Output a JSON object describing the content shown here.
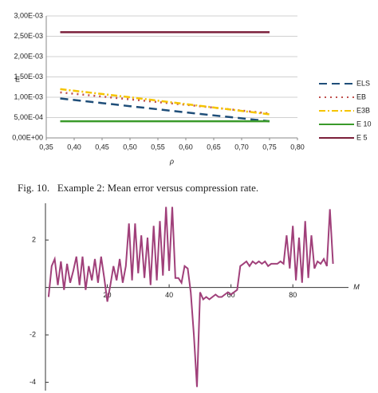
{
  "chart_data": [
    {
      "type": "line",
      "xlabel": "ρ",
      "ylabel": "E",
      "x": [
        0.375,
        0.5,
        0.625,
        0.75
      ],
      "xlim": [
        0.35,
        0.8
      ],
      "ylim": [
        0,
        0.003
      ],
      "xticks": [
        {
          "value": 0.35,
          "label": "0,35"
        },
        {
          "value": 0.4,
          "label": "0,40"
        },
        {
          "value": 0.45,
          "label": "0,45"
        },
        {
          "value": 0.5,
          "label": "0,50"
        },
        {
          "value": 0.55,
          "label": "0,55"
        },
        {
          "value": 0.6,
          "label": "0,60"
        },
        {
          "value": 0.65,
          "label": "0,65"
        },
        {
          "value": 0.7,
          "label": "0,70"
        },
        {
          "value": 0.75,
          "label": "0,75"
        },
        {
          "value": 0.8,
          "label": "0,80"
        }
      ],
      "yticks": [
        {
          "value": 0,
          "label": "0,00E+00"
        },
        {
          "value": 0.0005,
          "label": "5,00E-04"
        },
        {
          "value": 0.001,
          "label": "1,00E-03"
        },
        {
          "value": 0.0015,
          "label": "1,50E-03"
        },
        {
          "value": 0.002,
          "label": "2,00E-03"
        },
        {
          "value": 0.0025,
          "label": "2,50E-03"
        },
        {
          "value": 0.003,
          "label": "3,00E-03"
        }
      ],
      "grid": true,
      "legend": "right",
      "series": [
        {
          "name": "ELS",
          "color": "#1f4e79",
          "dash": "10,6",
          "values": [
            0.00097,
            0.00078,
            0.00059,
            0.00041
          ]
        },
        {
          "name": "EB",
          "color": "#c0504d",
          "dash": "2,5",
          "values": [
            0.00112,
            0.00095,
            0.00078,
            0.0006
          ]
        },
        {
          "name": "E3B",
          "color": "#f5c400",
          "dash": "8,3,2,3",
          "values": [
            0.0012,
            0.001,
            0.00079,
            0.00058
          ]
        },
        {
          "name": "E 10",
          "color": "#3a9a2a",
          "dash": "",
          "values": [
            0.00041,
            0.00041,
            0.00041,
            0.00041
          ]
        },
        {
          "name": "E 5",
          "color": "#7b1f3a",
          "dash": "",
          "values": [
            0.0026,
            0.0026,
            0.0026,
            0.0026
          ]
        }
      ]
    },
    {
      "type": "line",
      "xlabel": "M",
      "x": [
        1,
        2,
        3,
        4,
        5,
        6,
        7,
        8,
        9,
        10,
        11,
        12,
        13,
        14,
        15,
        16,
        17,
        18,
        19,
        20,
        21,
        22,
        23,
        24,
        25,
        26,
        27,
        28,
        29,
        30,
        31,
        32,
        33,
        34,
        35,
        36,
        37,
        38,
        39,
        40,
        41,
        42,
        43,
        44,
        45,
        46,
        47,
        48,
        49,
        50,
        51,
        52,
        53,
        54,
        55,
        56,
        57,
        58,
        59,
        60,
        61,
        62,
        63,
        64,
        65,
        66,
        67,
        68,
        69,
        70,
        71,
        72,
        73,
        74,
        75,
        76,
        77,
        78,
        79,
        80,
        81,
        82,
        83,
        84,
        85,
        86,
        87,
        88,
        89,
        90,
        91,
        92,
        93
      ],
      "xlim": [
        0,
        98
      ],
      "ylim": [
        -4.35,
        3.55
      ],
      "xticks": [
        20,
        40,
        60,
        80
      ],
      "yticks": [
        -4,
        -2,
        2
      ],
      "series": [
        {
          "name": "M",
          "color": "#a0407a",
          "values": [
            -0.4,
            0.9,
            1.2,
            0.1,
            1.1,
            -0.1,
            1.0,
            0.2,
            0.7,
            1.3,
            0.1,
            1.3,
            -0.1,
            0.9,
            0.3,
            1.2,
            0.2,
            1.3,
            0.4,
            -0.6,
            0.1,
            0.9,
            0.3,
            1.2,
            0.2,
            0.9,
            2.7,
            0.3,
            2.7,
            0.6,
            2.2,
            0.4,
            2.1,
            0.1,
            2.6,
            0.3,
            2.8,
            0.5,
            3.4,
            0.7,
            3.4,
            0.4,
            0.4,
            0.2,
            0.9,
            0.8,
            -0.2,
            -2.0,
            -4.2,
            -0.2,
            -0.5,
            -0.4,
            -0.5,
            -0.4,
            -0.3,
            -0.4,
            -0.4,
            -0.3,
            -0.2,
            -0.3,
            -0.2,
            -0.1,
            0.9,
            1.0,
            1.1,
            0.9,
            1.1,
            1.0,
            1.1,
            1.0,
            1.1,
            0.9,
            1.0,
            1.0,
            1.0,
            1.1,
            1.0,
            2.2,
            0.8,
            2.6,
            0.3,
            2.1,
            0.2,
            2.8,
            0.4,
            2.2,
            0.8,
            1.1,
            1.0,
            1.2,
            0.9,
            3.3,
            1.0
          ]
        }
      ]
    }
  ],
  "caption": "Fig. 10.   Example 2: Mean error versus compression rate."
}
